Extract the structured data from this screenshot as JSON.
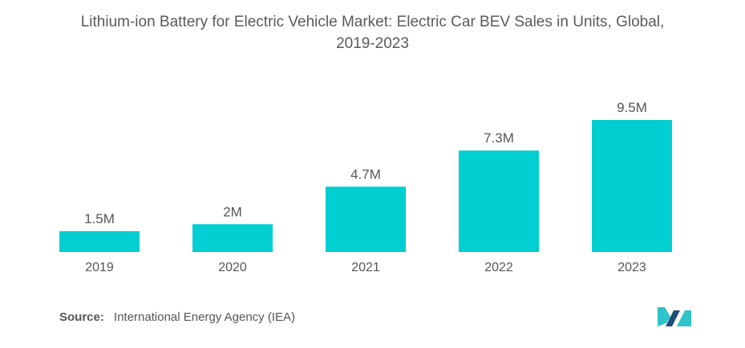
{
  "title": {
    "line1": "Lithium-ion Battery for Electric Vehicle Market: Electric Car BEV Sales in Units, Global,",
    "line2": "2019-2023"
  },
  "colors": {
    "bar": "#00ced1",
    "label": "#555555",
    "logo_dark": "#1f4e79",
    "logo_light": "#2ec4c9"
  },
  "chart_data": {
    "type": "bar",
    "title": "Lithium-ion Battery for Electric Vehicle Market: Electric Car BEV Sales in Units, Global, 2019-2023",
    "categories": [
      "2019",
      "2020",
      "2021",
      "2022",
      "2023"
    ],
    "values": [
      1.5,
      2,
      4.7,
      7.3,
      9.5
    ],
    "data_labels": [
      "1.5M",
      "2M",
      "4.7M",
      "7.3M",
      "9.5M"
    ],
    "xlabel": "",
    "ylabel": "",
    "ylim": [
      0,
      9.5
    ],
    "grid": false,
    "legend": "none"
  },
  "source": {
    "label": "Source:",
    "text": "International Energy Agency (IEA)"
  },
  "logo": {
    "name": "mordor-intelligence-logo-icon"
  }
}
